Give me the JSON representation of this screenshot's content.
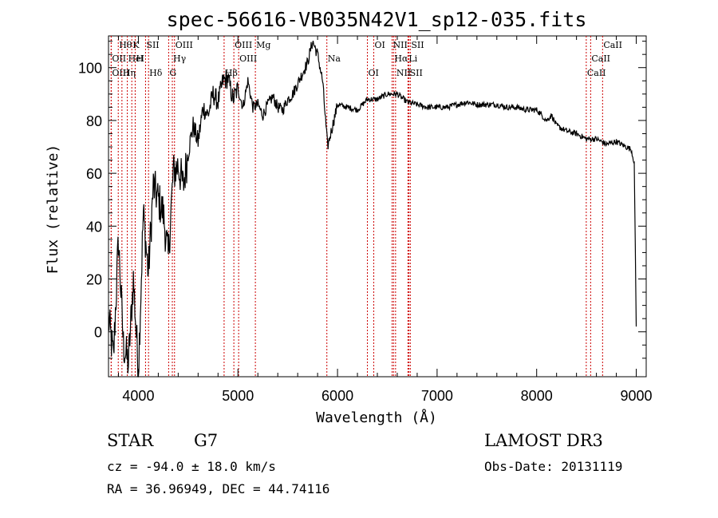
{
  "chart_data": {
    "type": "line",
    "title": "spec-56616-VB035N42V1_sp12-035.fits",
    "xlabel": "Wavelength (Å)",
    "ylabel": "Flux (relative)",
    "xlim": [
      3700,
      9100
    ],
    "ylim": [
      -17,
      112
    ],
    "x_ticks": [
      4000,
      5000,
      6000,
      7000,
      8000,
      9000
    ],
    "y_ticks": [
      0,
      20,
      40,
      60,
      80,
      100
    ],
    "x_tick_labels": [
      "4000",
      "5000",
      "6000",
      "7000",
      "8000",
      "9000"
    ],
    "y_tick_labels": [
      "0",
      "20",
      "40",
      "60",
      "80",
      "100"
    ],
    "grid": false,
    "series": [
      {
        "name": "flux",
        "x": [
          3700,
          3750,
          3800,
          3850,
          3900,
          3950,
          4000,
          4050,
          4100,
          4150,
          4200,
          4250,
          4300,
          4350,
          4400,
          4450,
          4500,
          4550,
          4600,
          4650,
          4700,
          4750,
          4800,
          4850,
          4900,
          4950,
          5000,
          5050,
          5100,
          5150,
          5200,
          5250,
          5300,
          5350,
          5400,
          5450,
          5500,
          5550,
          5600,
          5650,
          5700,
          5750,
          5800,
          5850,
          5900,
          5950,
          6000,
          6100,
          6200,
          6300,
          6400,
          6500,
          6600,
          6700,
          6800,
          6900,
          7000,
          7100,
          7200,
          7300,
          7400,
          7500,
          7600,
          7700,
          7800,
          7900,
          8000,
          8100,
          8150,
          8200,
          8300,
          8400,
          8500,
          8600,
          8700,
          8800,
          8900,
          8950,
          8980,
          9000
        ],
        "values": [
          5,
          -10,
          35,
          -5,
          -12,
          20,
          -15,
          45,
          22,
          55,
          50,
          45,
          28,
          60,
          63,
          55,
          68,
          78,
          72,
          85,
          82,
          90,
          87,
          95,
          96,
          88,
          92,
          85,
          95,
          85,
          86,
          82,
          86,
          89,
          85,
          84,
          88,
          90,
          94,
          98,
          102,
          110,
          105,
          95,
          70,
          78,
          86,
          85,
          84,
          88,
          88,
          90,
          90,
          87,
          86,
          85,
          85,
          85,
          86,
          87,
          86,
          86,
          86,
          85,
          85,
          84,
          84,
          80,
          82,
          78,
          76,
          75,
          73,
          73,
          71,
          72,
          70,
          69,
          64,
          2
        ]
      }
    ],
    "line_labels": [
      {
        "label": "Hθ",
        "wavelength": 3798
      },
      {
        "label": "OII",
        "wavelength": 3727
      },
      {
        "label": "OIII",
        "wavelength": 3727
      },
      {
        "label": "K",
        "wavelength": 3934
      },
      {
        "label": "HeI",
        "wavelength": 3889
      },
      {
        "label": "Hη",
        "wavelength": 3835
      },
      {
        "label": "SII",
        "wavelength": 4072
      },
      {
        "label": "H",
        "wavelength": 3968
      },
      {
        "label": "Hδ",
        "wavelength": 4102
      },
      {
        "label": "OIII",
        "wavelength": 4363
      },
      {
        "label": "Hγ",
        "wavelength": 4341
      },
      {
        "label": "G",
        "wavelength": 4304
      },
      {
        "label": "OIII",
        "wavelength": 4959
      },
      {
        "label": "OIII",
        "wavelength": 5007
      },
      {
        "label": "Hβ",
        "wavelength": 4861
      },
      {
        "label": "Mg",
        "wavelength": 5175
      },
      {
        "label": "Na",
        "wavelength": 5893
      },
      {
        "label": "OI",
        "wavelength": 6300
      },
      {
        "label": "OI",
        "wavelength": 6364
      },
      {
        "label": "Hα",
        "wavelength": 6563
      },
      {
        "label": "SII",
        "wavelength": 6717
      },
      {
        "label": "NII",
        "wavelength": 6548
      },
      {
        "label": "Li",
        "wavelength": 6707
      },
      {
        "label": "NII",
        "wavelength": 6583
      },
      {
        "label": "SII",
        "wavelength": 6731
      },
      {
        "label": "CaII",
        "wavelength": 8542
      },
      {
        "label": "CaII",
        "wavelength": 8498
      },
      {
        "label": "CaII",
        "wavelength": 8662
      }
    ]
  },
  "info": {
    "class_text": "STAR",
    "subclass_text": "G7",
    "survey_text": "LAMOST DR3",
    "cz_text": "cz = -94.0 ± 18.0 km/s",
    "obs_date_text": "Obs-Date: 20131119",
    "radec_text": "RA =  36.96949, DEC =  44.74116"
  },
  "colors": {
    "spectrum": "#000000",
    "line_markers": "#cc0000",
    "axes": "#000000"
  }
}
